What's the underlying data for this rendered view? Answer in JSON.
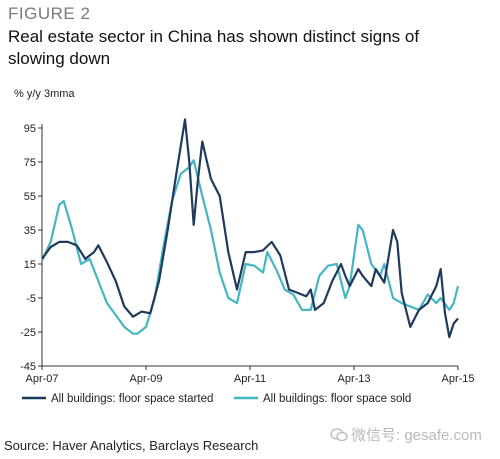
{
  "figure_label": "FIGURE 2",
  "title": "Real estate sector in China has shown distinct signs of slowing down",
  "source": "Source: Haver Analytics, Barclays Research",
  "watermark": "微信号: gesafe.com",
  "chart_data": {
    "type": "line",
    "title": "Real estate sector in China has shown distinct signs of slowing down",
    "ylabel": "% y/y 3mma",
    "xlabel": "",
    "ylim": [
      -45,
      95
    ],
    "xlim": [
      "2007-04",
      "2015-04"
    ],
    "yticks": [
      95,
      75,
      55,
      35,
      15,
      -5,
      -25,
      -45
    ],
    "xticks": [
      "Apr-07",
      "Apr-09",
      "Apr-11",
      "Apr-13",
      "Apr-15"
    ],
    "grid": false,
    "legend_position": "bottom",
    "series": [
      {
        "name": "All buildings: floor space started",
        "color": "#1f3a5a",
        "points": [
          [
            "2007-04",
            18
          ],
          [
            "2007-06",
            25
          ],
          [
            "2007-08",
            28
          ],
          [
            "2007-10",
            28
          ],
          [
            "2007-12",
            26
          ],
          [
            "2008-02",
            18
          ],
          [
            "2008-04",
            22
          ],
          [
            "2008-05",
            26
          ],
          [
            "2008-07",
            16
          ],
          [
            "2008-09",
            5
          ],
          [
            "2008-11",
            -10
          ],
          [
            "2009-01",
            -16
          ],
          [
            "2009-03",
            -13
          ],
          [
            "2009-05",
            -14
          ],
          [
            "2009-07",
            5
          ],
          [
            "2009-09",
            35
          ],
          [
            "2009-11",
            68
          ],
          [
            "2010-01",
            100
          ],
          [
            "2010-02",
            75
          ],
          [
            "2010-03",
            38
          ],
          [
            "2010-04",
            65
          ],
          [
            "2010-05",
            87
          ],
          [
            "2010-07",
            65
          ],
          [
            "2010-09",
            55
          ],
          [
            "2010-11",
            22
          ],
          [
            "2011-01",
            0
          ],
          [
            "2011-03",
            22
          ],
          [
            "2011-05",
            22
          ],
          [
            "2011-07",
            23
          ],
          [
            "2011-09",
            28
          ],
          [
            "2011-11",
            20
          ],
          [
            "2012-01",
            0
          ],
          [
            "2012-03",
            -2
          ],
          [
            "2012-05",
            -4
          ],
          [
            "2012-06",
            0
          ],
          [
            "2012-07",
            -12
          ],
          [
            "2012-09",
            -8
          ],
          [
            "2012-11",
            5
          ],
          [
            "2013-01",
            15
          ],
          [
            "2013-02",
            8
          ],
          [
            "2013-03",
            2
          ],
          [
            "2013-05",
            12
          ],
          [
            "2013-06",
            8
          ],
          [
            "2013-08",
            2
          ],
          [
            "2013-09",
            12
          ],
          [
            "2013-11",
            4
          ],
          [
            "2014-01",
            35
          ],
          [
            "2014-02",
            28
          ],
          [
            "2014-03",
            -2
          ],
          [
            "2014-05",
            -22
          ],
          [
            "2014-07",
            -12
          ],
          [
            "2014-09",
            -8
          ],
          [
            "2014-11",
            2
          ],
          [
            "2014-12",
            12
          ],
          [
            "2015-01",
            -14
          ],
          [
            "2015-02",
            -28
          ],
          [
            "2015-03",
            -20
          ],
          [
            "2015-04",
            -17
          ]
        ]
      },
      {
        "name": "All buildings: floor space sold",
        "color": "#45b5c4",
        "points": [
          [
            "2007-04",
            17
          ],
          [
            "2007-06",
            28
          ],
          [
            "2007-08",
            50
          ],
          [
            "2007-09",
            52
          ],
          [
            "2007-11",
            35
          ],
          [
            "2008-01",
            15
          ],
          [
            "2008-03",
            18
          ],
          [
            "2008-05",
            5
          ],
          [
            "2008-07",
            -8
          ],
          [
            "2008-09",
            -15
          ],
          [
            "2008-11",
            -22
          ],
          [
            "2009-01",
            -26
          ],
          [
            "2009-02",
            -26
          ],
          [
            "2009-04",
            -22
          ],
          [
            "2009-06",
            -5
          ],
          [
            "2009-08",
            25
          ],
          [
            "2009-10",
            52
          ],
          [
            "2009-12",
            68
          ],
          [
            "2010-02",
            72
          ],
          [
            "2010-03",
            76
          ],
          [
            "2010-05",
            55
          ],
          [
            "2010-07",
            35
          ],
          [
            "2010-09",
            10
          ],
          [
            "2010-11",
            -5
          ],
          [
            "2011-01",
            -8
          ],
          [
            "2011-03",
            15
          ],
          [
            "2011-05",
            14
          ],
          [
            "2011-07",
            10
          ],
          [
            "2011-08",
            22
          ],
          [
            "2011-10",
            12
          ],
          [
            "2011-12",
            0
          ],
          [
            "2012-02",
            -3
          ],
          [
            "2012-04",
            -12
          ],
          [
            "2012-06",
            -12
          ],
          [
            "2012-08",
            8
          ],
          [
            "2012-10",
            14
          ],
          [
            "2012-12",
            15
          ],
          [
            "2013-02",
            -5
          ],
          [
            "2013-03",
            2
          ],
          [
            "2013-05",
            38
          ],
          [
            "2013-06",
            35
          ],
          [
            "2013-08",
            15
          ],
          [
            "2013-10",
            8
          ],
          [
            "2013-11",
            15
          ],
          [
            "2014-01",
            -5
          ],
          [
            "2014-03",
            -8
          ],
          [
            "2014-05",
            -10
          ],
          [
            "2014-07",
            -12
          ],
          [
            "2014-09",
            -3
          ],
          [
            "2014-11",
            -8
          ],
          [
            "2014-12",
            -5
          ],
          [
            "2015-02",
            -12
          ],
          [
            "2015-03",
            -8
          ],
          [
            "2015-04",
            2
          ]
        ]
      }
    ]
  }
}
